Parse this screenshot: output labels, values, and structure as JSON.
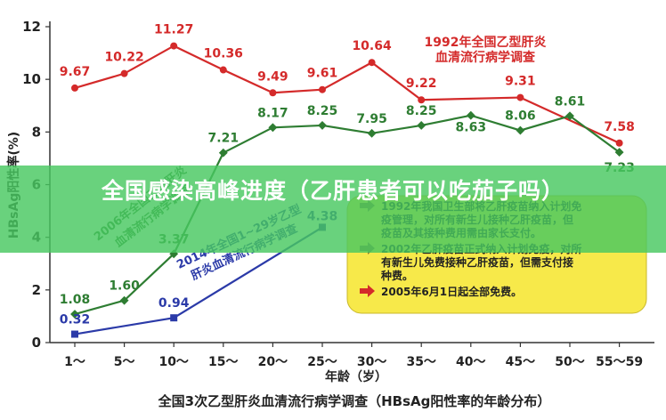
{
  "banner": {
    "title": "全国感染高峰进度（乙肝患者可以吃茄子吗）"
  },
  "chart_data": {
    "type": "line",
    "title": "全国3次乙型肝炎血清流行病学调查（HBsAg阳性率的年龄分布）",
    "xlabel": "年龄（岁）",
    "ylabel": "HBsAg阳性率(%)",
    "ylim": [
      0,
      12
    ],
    "yticks": [
      "0",
      "2",
      "4",
      "6",
      "8",
      "10",
      "12"
    ],
    "categories": [
      "1～",
      "5～",
      "10～",
      "15～",
      "20～",
      "25～",
      "30～",
      "35～",
      "40～",
      "45～",
      "50～",
      "55～59"
    ],
    "grid": false,
    "series": [
      {
        "name": "1992年全国乙型肝炎血清流行病学调查",
        "color": "#d42a2a",
        "values": [
          9.67,
          10.22,
          11.27,
          10.36,
          9.49,
          9.61,
          10.64,
          9.22,
          null,
          9.31,
          null,
          7.58
        ],
        "labels": [
          "9.67",
          "10.22",
          "11.27",
          "10.36",
          "9.49",
          "9.61",
          "10.64",
          "9.22",
          "",
          "9.31",
          "",
          "7.58"
        ]
      },
      {
        "name": "2006年全国乙型肝炎血清流行病学调查",
        "color": "#2e7d32",
        "values": [
          1.08,
          1.6,
          3.37,
          7.21,
          8.17,
          8.25,
          7.95,
          8.25,
          8.63,
          8.06,
          8.61,
          7.23
        ],
        "labels": [
          "1.08",
          "1.60",
          "3.37",
          "7.21",
          "8.17",
          "8.25",
          "7.95",
          "8.25",
          "8.63",
          "8.06",
          "8.61",
          "7.23"
        ]
      },
      {
        "name": "2014年全国1～29岁乙型肝炎血清流行病学调查",
        "color": "#2b3aa8",
        "values": [
          0.32,
          null,
          0.94,
          null,
          null,
          4.38,
          null,
          null,
          null,
          null,
          null,
          null
        ],
        "labels": [
          "0.32",
          "",
          "0.94",
          "",
          "",
          "4.38",
          "",
          "",
          "",
          "",
          "",
          ""
        ]
      }
    ],
    "legend": {
      "placement": "top-right",
      "title_1992_line1": "1992年全国乙型肝炎",
      "title_1992_line2": "血清流行病学调查",
      "label_2006_line1": "2006年全国乙型肝炎",
      "label_2006_line2": "血清流行病学调查",
      "label_2014_line1": "2014年全国1~29岁乙型",
      "label_2014_line2": "肝炎血清流行病学调查"
    },
    "annotation_box": {
      "fill": "#f7e94a",
      "items": [
        {
          "line1": "1992年我国卫生部将乙肝疫苗纳入计划免",
          "line2": "疫管理，对所有新生儿接种乙肝疫苗，但",
          "line3": "疫苗及其接种费用需由家长支付。"
        },
        {
          "line1": "2002年乙肝疫苗正式纳入计划免疫，对所",
          "line2": "有新生儿免费接种乙肝疫苗，但需支付接",
          "line3": "种费。"
        },
        {
          "line1": "2005年6月1日起全部免费。",
          "line2": "",
          "line3": ""
        }
      ]
    }
  }
}
